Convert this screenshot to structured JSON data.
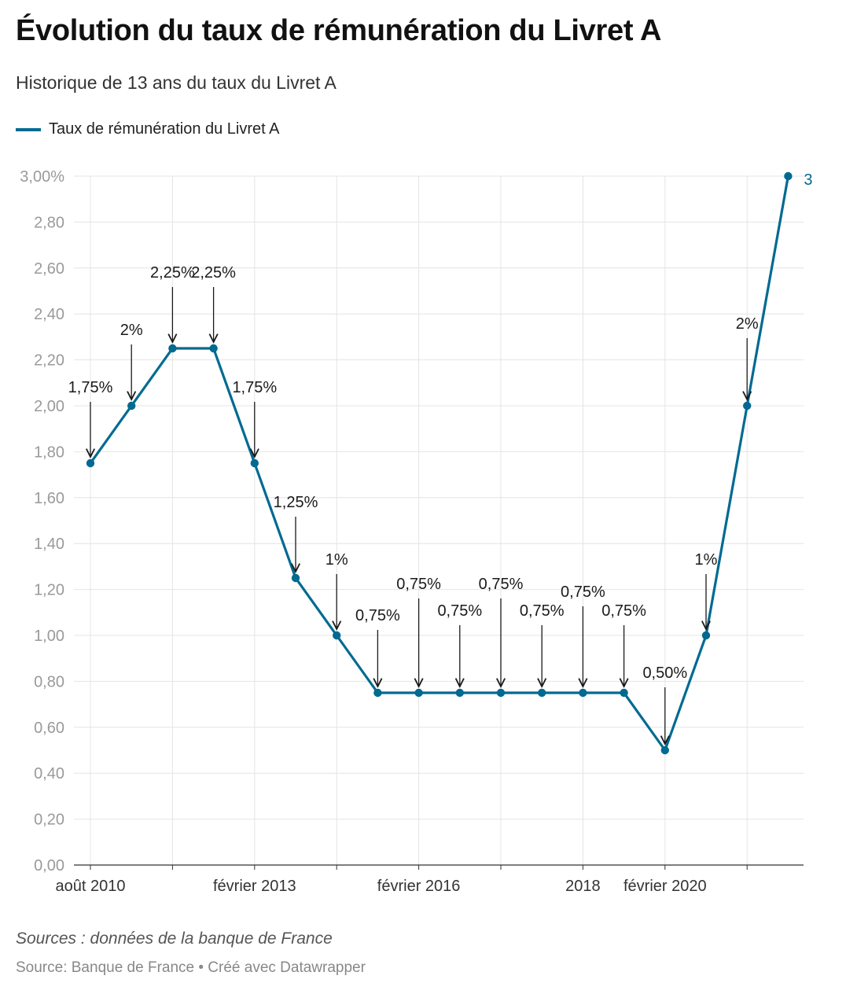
{
  "title": "Évolution du taux de rémunération du Livret A",
  "subtitle": "Historique de 13 ans du taux du Livret A",
  "notes": "Sources : données de la banque de France",
  "footer": "Source: Banque de France • Créé avec Datawrapper",
  "colors": {
    "line": "#006a91",
    "grid": "#e4e4e4",
    "axis": "#333333",
    "annotation": "#1a1a1a"
  },
  "chart_data": {
    "type": "line",
    "title": "Évolution du taux de rémunération du Livret A",
    "subtitle": "Historique de 13 ans du taux du Livret A",
    "xlabel": "",
    "ylabel": "",
    "grid": true,
    "legend_position": "top-left",
    "ylim": [
      0,
      3
    ],
    "y_ticks": [
      0,
      0.2,
      0.4,
      0.6,
      0.8,
      1.0,
      1.2,
      1.4,
      1.6,
      1.8,
      2.0,
      2.2,
      2.4,
      2.6,
      2.8,
      3.0
    ],
    "y_tick_labels": [
      "0,00",
      "0,20",
      "0,40",
      "0,60",
      "0,80",
      "1,00",
      "1,20",
      "1,40",
      "1,60",
      "1,80",
      "2,00",
      "2,20",
      "2,40",
      "2,60",
      "2,80",
      "3,00%"
    ],
    "x_tick_labels": [
      {
        "index": 0,
        "label": "août 2010"
      },
      {
        "index": 4,
        "label": "février 2013"
      },
      {
        "index": 8,
        "label": "février 2016"
      },
      {
        "index": 12,
        "label": "2018"
      },
      {
        "index": 14,
        "label": "février 2020"
      }
    ],
    "series": [
      {
        "name": "Taux de rémunération du Livret A",
        "values": [
          1.75,
          2.0,
          2.25,
          2.25,
          1.75,
          1.25,
          1.0,
          0.75,
          0.75,
          0.75,
          0.75,
          0.75,
          0.75,
          0.75,
          0.5,
          1.0,
          2.0,
          3.0
        ]
      }
    ],
    "end_label": "3",
    "annotations": [
      {
        "index": 0,
        "text": "1,75%"
      },
      {
        "index": 1,
        "text": "2%"
      },
      {
        "index": 2,
        "text": "2,25%"
      },
      {
        "index": 3,
        "text": "2,25%"
      },
      {
        "index": 4,
        "text": "1,75%"
      },
      {
        "index": 5,
        "text": "1,25%"
      },
      {
        "index": 6,
        "text": "1%"
      },
      {
        "index": 7,
        "text": "0,75%"
      },
      {
        "index": 8,
        "text": "0,75%"
      },
      {
        "index": 9,
        "text": "0,75%"
      },
      {
        "index": 10,
        "text": "0,75%"
      },
      {
        "index": 11,
        "text": "0,75%"
      },
      {
        "index": 12,
        "text": "0,75%"
      },
      {
        "index": 13,
        "text": "0,75%"
      },
      {
        "index": 14,
        "text": "0,50%"
      },
      {
        "index": 15,
        "text": "1%"
      },
      {
        "index": 16,
        "text": "2%"
      }
    ]
  }
}
